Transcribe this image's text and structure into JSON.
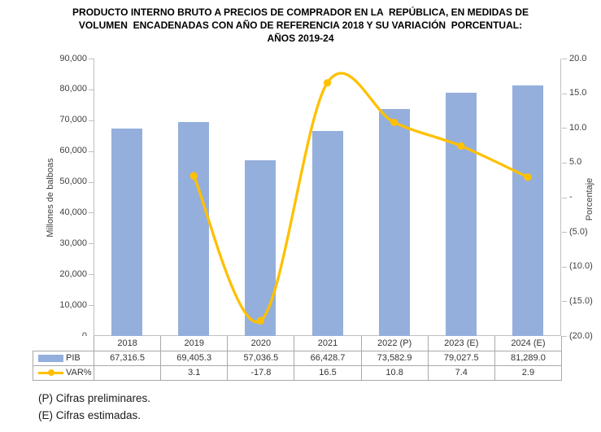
{
  "title": {
    "line1": "PRODUCTO INTERNO BRUTO A PRECIOS DE COMPRADOR EN LA  REPÚBLICA, EN MEDIDAS DE",
    "line2": "VOLUMEN  ENCADENADAS CON AÑO DE REFERENCIA 2018 Y SU VARIACIÓN  PORCENTUAL:",
    "line3": "AÑOS 2019-24"
  },
  "chart_data": {
    "type": "combo-bar-line",
    "categories": [
      "2018",
      "2019",
      "2020",
      "2021",
      "2022 (P)",
      "2023 (E)",
      "2024 (E)"
    ],
    "series": [
      {
        "name": "PIB",
        "type": "bar",
        "axis": "left",
        "values": [
          67316.5,
          69405.3,
          57036.5,
          66428.7,
          73582.9,
          79027.5,
          81289.0
        ],
        "display": [
          "67,316.5",
          "69,405.3",
          "57,036.5",
          "66,428.7",
          "73,582.9",
          "79,027.5",
          "81,289.0"
        ]
      },
      {
        "name": "VAR%",
        "type": "line",
        "axis": "right",
        "values": [
          null,
          3.1,
          -17.8,
          16.5,
          10.8,
          7.4,
          2.9
        ],
        "display": [
          "",
          "3.1",
          "-17.8",
          "16.5",
          "10.8",
          "7.4",
          "2.9"
        ]
      }
    ],
    "left_axis": {
      "label": "Millones de balboas",
      "min": 0,
      "max": 90000,
      "ticks": [
        "0",
        "10,000",
        "20,000",
        "30,000",
        "40,000",
        "50,000",
        "60,000",
        "70,000",
        "80,000",
        "90,000"
      ]
    },
    "right_axis": {
      "label": "Porcentaje",
      "min": -20,
      "max": 20,
      "ticks": [
        "(20.0)",
        "(15.0)",
        "(10.0)",
        "(5.0)",
        "-",
        "5.0",
        "10.0",
        "15.0",
        "20.0"
      ]
    },
    "grid": false,
    "legend_position": "table-left"
  },
  "colors": {
    "bar": "#95AFDC",
    "line": "#FFC000",
    "axis": "#BFBFBF",
    "table_border": "#A9A9A9",
    "text": "#404040"
  },
  "footnotes": {
    "line1": "(P) Cifras preliminares.",
    "line2": "(E) Cifras estimadas."
  }
}
